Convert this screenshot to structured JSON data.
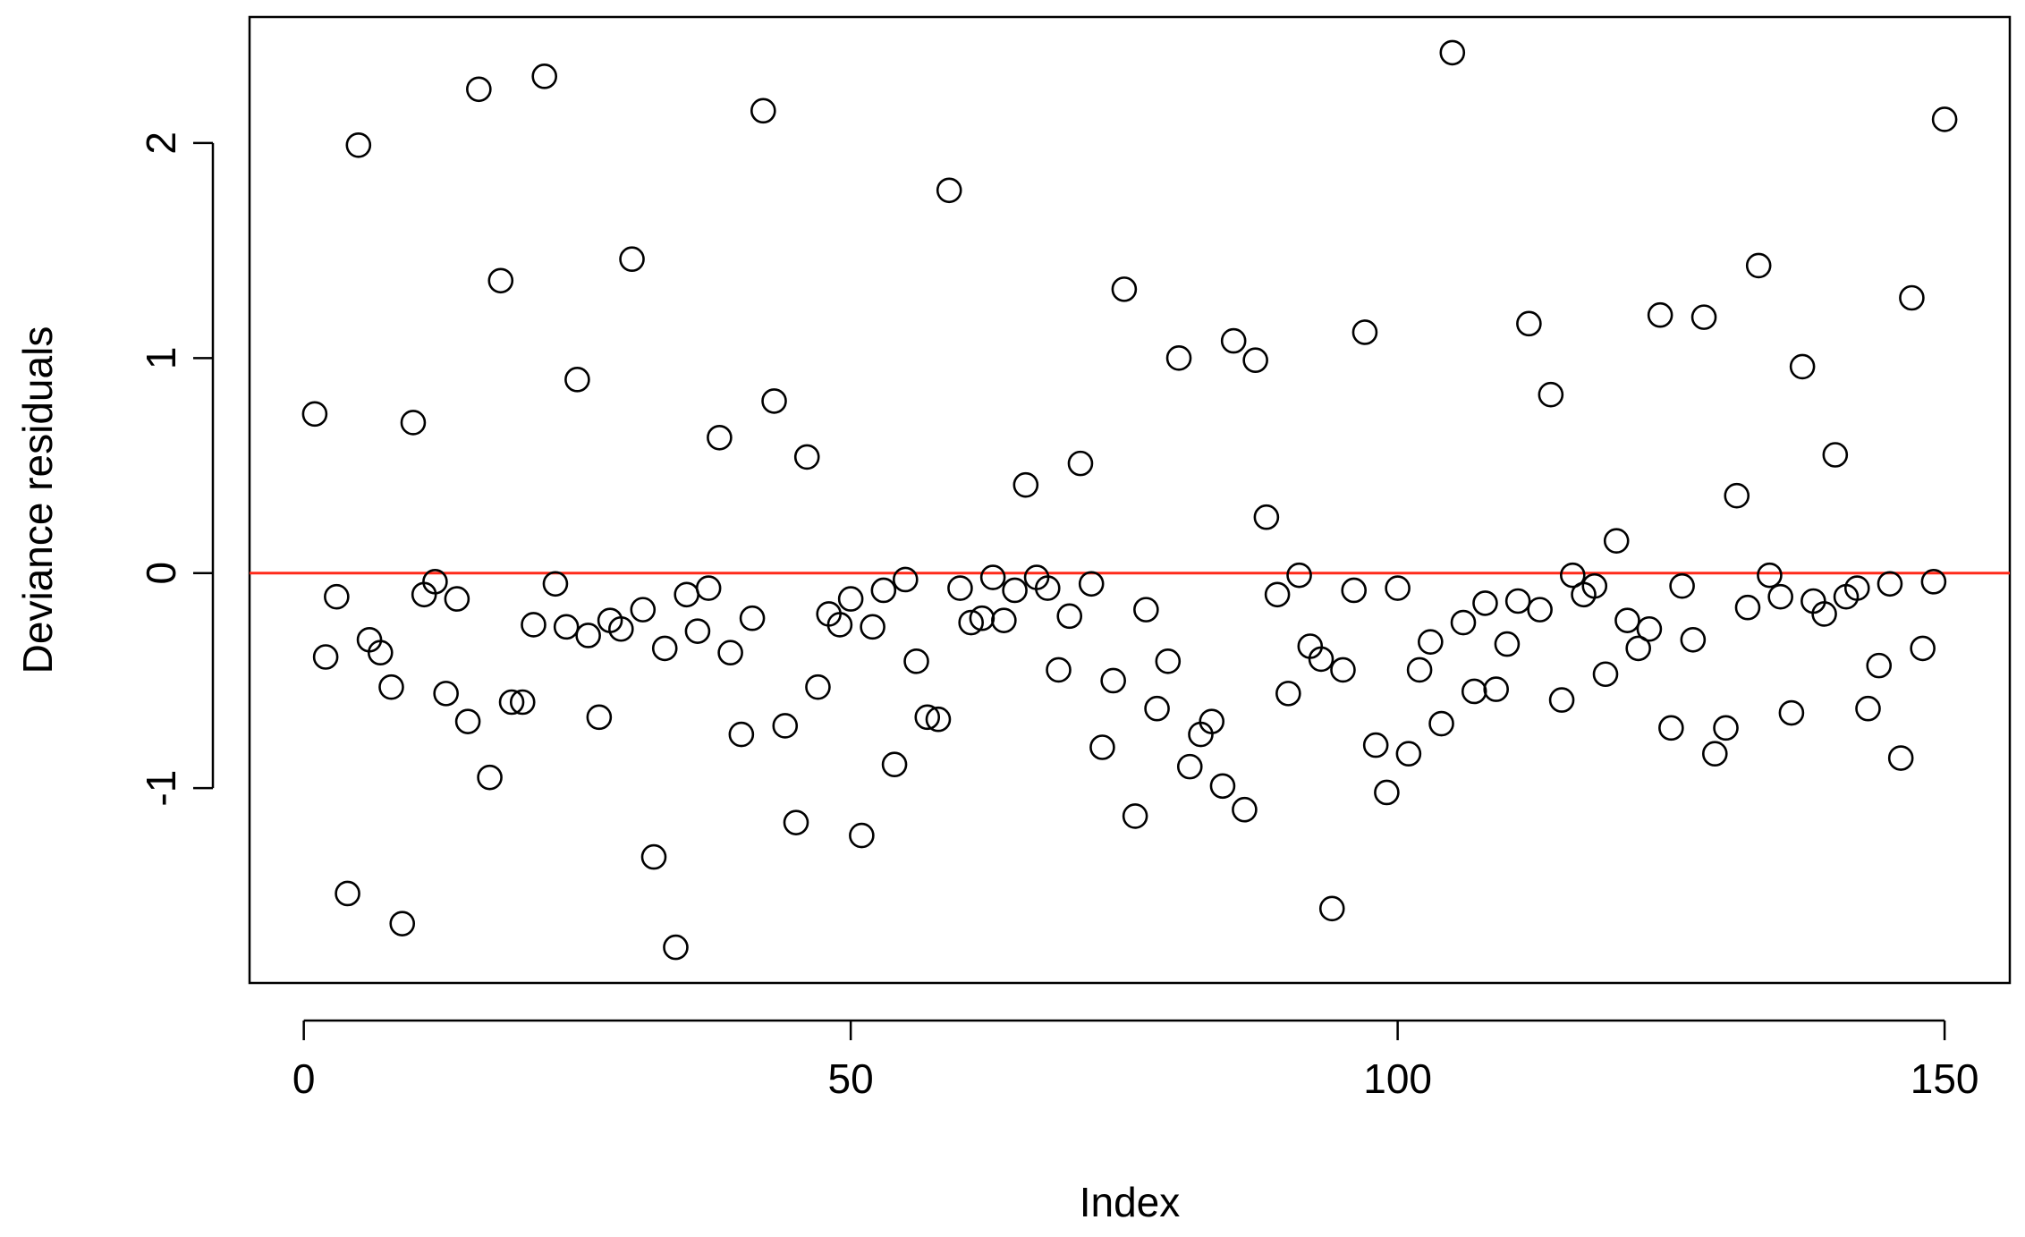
{
  "chart_data": {
    "type": "scatter",
    "xlabel": "Index",
    "ylabel": "Deviance residuals",
    "x": [
      1,
      2,
      3,
      4,
      5,
      6,
      7,
      8,
      9,
      10,
      11,
      12,
      13,
      14,
      15,
      16,
      17,
      18,
      19,
      20,
      21,
      22,
      23,
      24,
      25,
      26,
      27,
      28,
      29,
      30,
      31,
      32,
      33,
      34,
      35,
      36,
      37,
      38,
      39,
      40,
      41,
      42,
      43,
      44,
      45,
      46,
      47,
      48,
      49,
      50,
      51,
      52,
      53,
      54,
      55,
      56,
      57,
      58,
      59,
      60,
      61,
      62,
      63,
      64,
      65,
      66,
      67,
      68,
      69,
      70,
      71,
      72,
      73,
      74,
      75,
      76,
      77,
      78,
      79,
      80,
      81,
      82,
      83,
      84,
      85,
      86,
      87,
      88,
      89,
      90,
      91,
      92,
      93,
      94,
      95,
      96,
      97,
      98,
      99,
      100,
      101,
      102,
      103,
      104,
      105,
      106,
      107,
      108,
      109,
      110,
      111,
      112,
      113,
      114,
      115,
      116,
      117,
      118,
      119,
      120,
      121,
      122,
      123,
      124,
      125,
      126,
      127,
      128,
      129,
      130,
      131,
      132,
      133,
      134,
      135,
      136,
      137,
      138,
      139,
      140,
      141,
      142,
      143,
      144,
      145,
      146,
      147,
      148,
      149,
      150
    ],
    "values": [
      0.74,
      -0.39,
      -0.11,
      -1.49,
      1.99,
      -0.31,
      -0.37,
      -0.53,
      -1.63,
      0.7,
      -0.1,
      -0.04,
      -0.56,
      -0.12,
      -0.69,
      2.25,
      -0.95,
      1.36,
      -0.6,
      -0.6,
      -0.24,
      2.31,
      -0.05,
      -0.25,
      0.9,
      -0.29,
      -0.67,
      -0.22,
      -0.26,
      1.46,
      -0.17,
      -1.32,
      -0.35,
      -1.74,
      -0.1,
      -0.27,
      -0.07,
      0.63,
      -0.37,
      -0.75,
      -0.21,
      2.15,
      0.8,
      -0.71,
      -1.16,
      0.54,
      -0.53,
      -0.19,
      -0.24,
      -0.12,
      -1.22,
      -0.25,
      -0.08,
      -0.89,
      -0.03,
      -0.41,
      -0.67,
      -0.68,
      1.78,
      -0.07,
      -0.23,
      -0.21,
      -0.02,
      -0.22,
      -0.08,
      0.41,
      -0.02,
      -0.07,
      -0.45,
      -0.2,
      0.51,
      -0.05,
      -0.81,
      -0.5,
      1.32,
      -1.13,
      -0.17,
      -0.63,
      -0.41,
      1.0,
      -0.9,
      -0.75,
      -0.69,
      -0.99,
      1.08,
      -1.1,
      0.99,
      0.26,
      -0.1,
      -0.56,
      -0.01,
      -0.34,
      -0.4,
      -1.56,
      -0.45,
      -0.08,
      1.12,
      -0.8,
      -1.02,
      -0.07,
      -0.84,
      -0.45,
      -0.32,
      -0.7,
      2.42,
      -0.23,
      -0.55,
      -0.14,
      -0.54,
      -0.33,
      -0.13,
      1.16,
      -0.17,
      0.83,
      -0.59,
      -0.01,
      -0.1,
      -0.06,
      -0.47,
      0.15,
      -0.22,
      -0.35,
      -0.26,
      1.2,
      -0.72,
      -0.06,
      -0.31,
      1.19,
      -0.84,
      -0.72,
      0.36,
      -0.16,
      1.43,
      -0.01,
      -0.11,
      -0.65,
      0.96,
      -0.13,
      -0.19,
      0.55,
      -0.11,
      -0.07,
      -0.63,
      -0.43,
      -0.05,
      -0.86,
      1.28,
      -0.35,
      -0.04,
      2.11
    ],
    "color": "#000000",
    "xlim": [
      -4.96,
      155.96
    ],
    "ylim": [
      -1.906,
      2.586
    ],
    "xticks": [
      0,
      50,
      100,
      150
    ],
    "yticks": [
      -1,
      0,
      1,
      2
    ],
    "reference_line": {
      "value": 0,
      "color": "#ff2a1a"
    }
  }
}
